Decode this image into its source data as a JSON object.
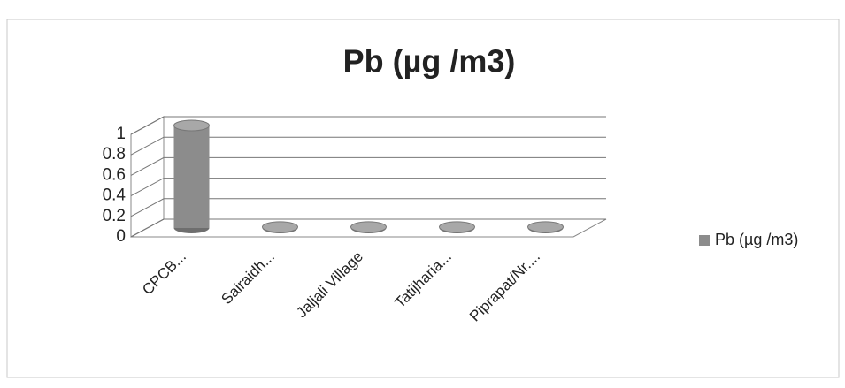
{
  "chart_data": {
    "type": "bar3d",
    "title": "Pb (µg /m3)",
    "categories": [
      "CPCB...",
      "Sairaidh...",
      "Jaljali Village",
      "Tatijharia...",
      "Piprapat/Nr...."
    ],
    "series": [
      {
        "name": "Pb (µg /m3)",
        "color": "#8c8c8c",
        "values": [
          1,
          0.01,
          0.01,
          0.01,
          0.01
        ]
      }
    ],
    "ylim": [
      0,
      1
    ],
    "yticks": [
      0,
      0.2,
      0.4,
      0.6,
      0.8,
      1
    ],
    "grid": true,
    "legend": "right"
  }
}
